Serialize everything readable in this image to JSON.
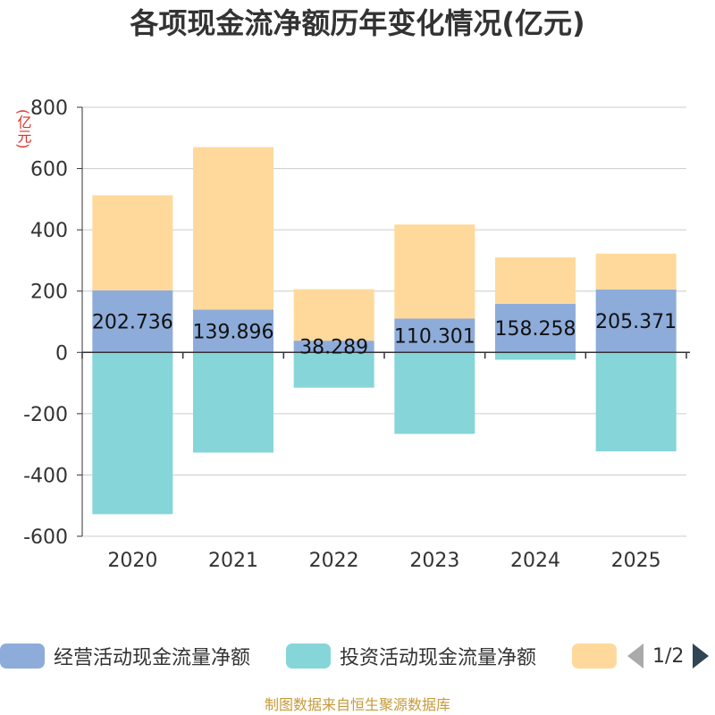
{
  "title": "各项现金流净额历年变化情况(亿元)",
  "source": "制图数据来自恒生聚源数据库",
  "chart_data": {
    "type": "bar",
    "stacked": true,
    "title": "各项现金流净额历年变化情况(亿元)",
    "ylabel": "(亿元)",
    "xlabel": "",
    "categories": [
      "2020",
      "2021",
      "2022",
      "2023",
      "2024",
      "2025"
    ],
    "ylim": [
      -600,
      800
    ],
    "yticks": [
      800,
      600,
      400,
      200,
      0,
      -200,
      -400,
      -600
    ],
    "grid": true,
    "series": [
      {
        "name": "经营活动现金流量净额",
        "color": "#8eacd9",
        "values": [
          202.736,
          139.896,
          38.289,
          110.301,
          158.258,
          205.371
        ],
        "labels": [
          "202.736",
          "139.896",
          "38.289",
          "110.301",
          "158.258",
          "205.371"
        ]
      },
      {
        "name": "投资活动现金流量净额",
        "color": "#86d5d8",
        "values": [
          -528,
          -327,
          -115,
          -266,
          -24,
          -323
        ]
      },
      {
        "name": "",
        "color": "#ffd99b",
        "values": [
          310,
          530,
          168,
          307,
          152,
          117
        ]
      }
    ],
    "legend_position": "bottom",
    "legend_page": "1/2"
  }
}
